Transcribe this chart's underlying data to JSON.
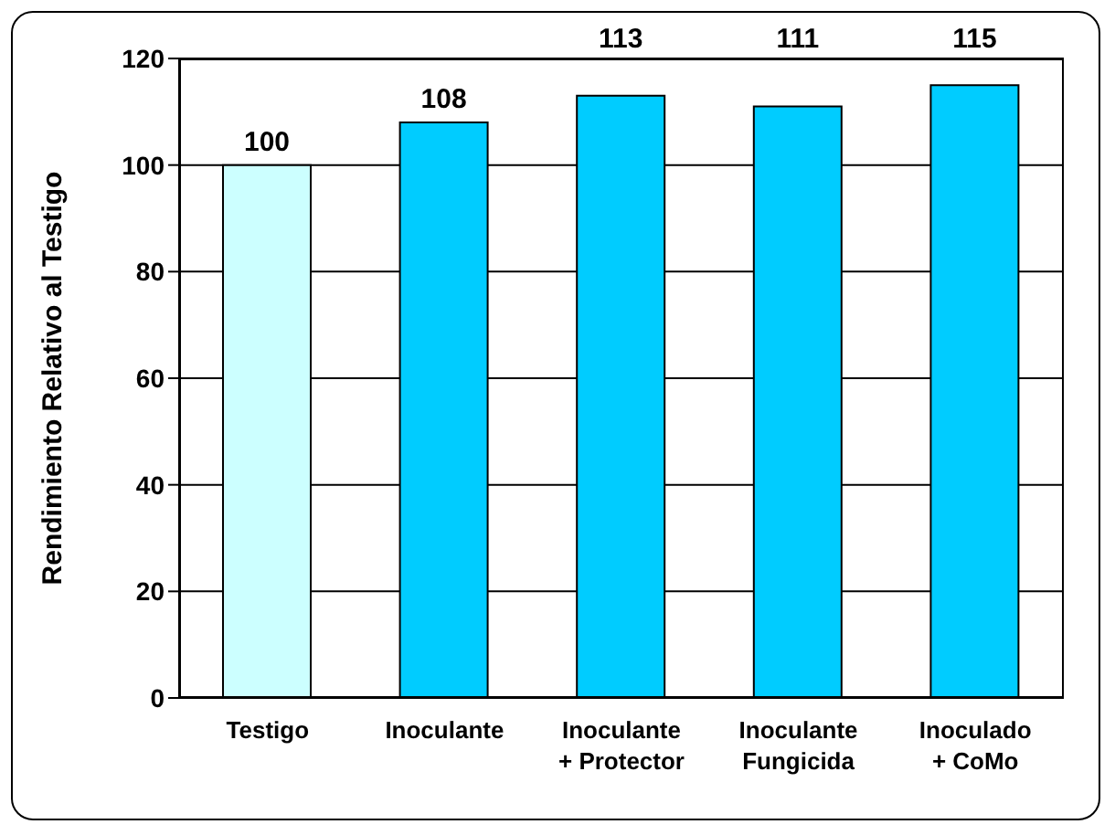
{
  "chart_data": {
    "type": "bar",
    "ylabel": "Rendimiento Relativo al Testigo",
    "categories": [
      "Testigo",
      "Inoculante",
      "Inoculante + Protector",
      "Inoculante Fungicida",
      "Inoculado + CoMo"
    ],
    "values": [
      100,
      108,
      113,
      111,
      115
    ],
    "colors": [
      "#ccffff",
      "#00ccff",
      "#00ccff",
      "#00ccff",
      "#00ccff"
    ],
    "ylim": [
      0,
      120
    ],
    "yticks": [
      0,
      20,
      40,
      60,
      80,
      100,
      120
    ],
    "grid": "y",
    "data_labels": true
  }
}
